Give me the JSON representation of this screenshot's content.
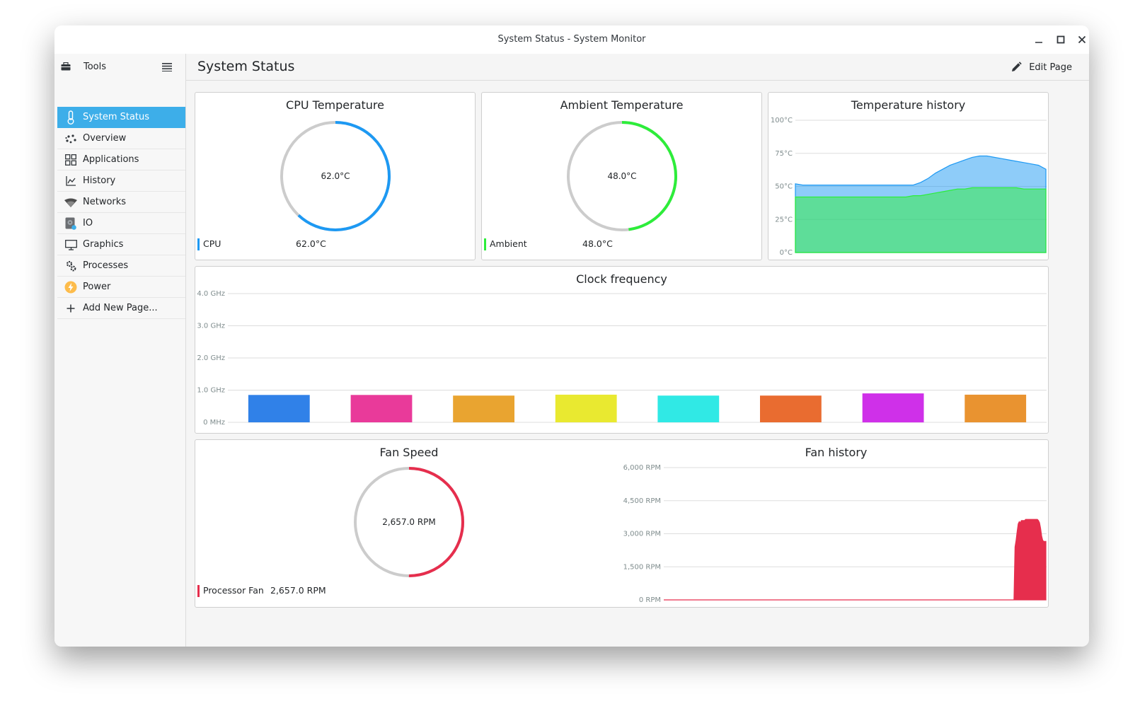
{
  "window": {
    "title": "System Status - System Monitor"
  },
  "sidebar": {
    "tools_label": "Tools",
    "items": [
      {
        "label": "System Status",
        "icon": "thermometer-icon",
        "active": true
      },
      {
        "label": "Overview",
        "icon": "overview-icon"
      },
      {
        "label": "Applications",
        "icon": "applications-grid-icon"
      },
      {
        "label": "History",
        "icon": "history-chart-icon"
      },
      {
        "label": "Networks",
        "icon": "wifi-icon"
      },
      {
        "label": "IO",
        "icon": "disk-icon"
      },
      {
        "label": "Graphics",
        "icon": "monitor-icon"
      },
      {
        "label": "Processes",
        "icon": "gears-icon"
      },
      {
        "label": "Power",
        "icon": "lightning-icon"
      },
      {
        "label": "Add New Page...",
        "icon": "plus-icon"
      }
    ]
  },
  "header": {
    "title": "System Status",
    "edit_label": "Edit Page"
  },
  "colors": {
    "accent": "#3daee9",
    "cpu": "#1d99f3",
    "ambient": "#2ded3a",
    "fan": "#e62e4d",
    "gauge_track": "#cccccc"
  },
  "cpu_temp": {
    "title": "CPU Temperature",
    "value_text": "62.0°C",
    "fraction": 0.62,
    "legend_label": "CPU",
    "legend_value": "62.0°C"
  },
  "ambient_temp": {
    "title": "Ambient Temperature",
    "value_text": "48.0°C",
    "fraction": 0.48,
    "legend_label": "Ambient",
    "legend_value": "48.0°C"
  },
  "fan_speed": {
    "title": "Fan Speed",
    "value_text": "2,657.0 RPM",
    "fraction": 0.5,
    "legend_label": "Processor Fan",
    "legend_value": "2,657.0 RPM"
  },
  "chart_data": [
    {
      "type": "area",
      "title": "Temperature history",
      "ylim": [
        0,
        100
      ],
      "yticks": [
        "100°C",
        "75°C",
        "50°C",
        "25°C",
        "0°C"
      ],
      "ytick_values": [
        100,
        75,
        50,
        25,
        0
      ],
      "grid": true,
      "series": [
        {
          "color": "#1d99f3",
          "values": [
            52,
            51,
            51,
            51,
            51,
            51,
            51,
            51,
            51,
            51,
            51,
            51,
            51,
            51,
            51,
            51,
            51,
            53,
            56,
            60,
            63,
            66,
            68,
            70,
            72,
            73,
            73,
            72,
            71,
            70,
            69,
            68,
            67,
            66,
            63
          ]
        },
        {
          "color": "#2ded3a",
          "values": [
            42,
            42,
            42,
            42,
            42,
            42,
            42,
            42,
            42,
            42,
            42,
            42,
            42,
            42,
            42,
            42,
            43,
            43,
            44,
            45,
            46,
            47,
            48,
            48,
            49,
            49,
            49,
            49,
            49,
            49,
            49,
            48,
            48,
            48,
            48
          ]
        }
      ]
    },
    {
      "type": "bar",
      "title": "Clock frequency",
      "ylim": [
        0,
        4
      ],
      "yticks": [
        "4.0 GHz",
        "3.0 GHz",
        "2.0 GHz",
        "1.0 GHz",
        "0 MHz"
      ],
      "ytick_values": [
        4,
        3,
        2,
        1,
        0
      ],
      "grid": true,
      "series": [
        {
          "color": "#3081e8",
          "value": 0.85
        },
        {
          "color": "#e93a9a",
          "value": 0.85
        },
        {
          "color": "#e9a430",
          "value": 0.83
        },
        {
          "color": "#e9e930",
          "value": 0.86
        },
        {
          "color": "#30e9e5",
          "value": 0.83
        },
        {
          "color": "#e96c30",
          "value": 0.83
        },
        {
          "color": "#cf30e9",
          "value": 0.9
        },
        {
          "color": "#e99330",
          "value": 0.86
        }
      ]
    },
    {
      "type": "area",
      "title": "Fan history",
      "ylim": [
        0,
        6000
      ],
      "yticks": [
        "6,000 RPM",
        "4,500 RPM",
        "3,000 RPM",
        "1,500 RPM",
        "0 RPM"
      ],
      "ytick_values": [
        6000,
        4500,
        3000,
        1500,
        0
      ],
      "grid": true,
      "series": [
        {
          "color": "#e62e4d",
          "values": [
            0,
            0,
            0,
            0,
            0,
            0,
            0,
            0,
            0,
            0,
            0,
            0,
            0,
            0,
            0,
            0,
            0,
            0,
            0,
            0,
            0,
            0,
            0,
            0,
            0,
            0,
            0,
            0,
            0,
            0,
            0,
            0,
            0,
            0,
            0,
            0,
            0,
            0,
            0,
            0,
            0,
            0,
            0,
            0,
            0,
            0,
            0,
            0,
            0,
            0,
            0,
            0,
            0,
            0,
            0,
            0,
            0,
            0,
            0,
            0,
            0,
            0,
            0,
            0,
            0,
            0,
            0,
            0,
            0,
            0,
            0,
            0,
            0,
            0,
            0,
            0,
            0,
            0,
            0,
            0,
            0,
            0,
            0,
            0,
            0,
            0,
            0,
            0,
            0,
            0,
            0,
            0,
            0,
            0,
            0,
            0,
            0,
            0,
            0,
            0,
            0,
            0,
            0,
            0,
            0,
            0,
            0,
            0,
            0,
            0,
            0,
            0,
            0,
            0,
            0,
            0,
            0,
            0,
            0,
            0,
            0,
            0,
            0,
            0,
            0,
            0,
            0,
            0,
            0,
            0,
            0,
            0,
            0,
            0,
            0,
            0,
            0,
            0,
            0,
            0,
            0,
            0,
            0,
            0,
            0,
            0,
            0,
            0,
            0,
            0,
            0,
            0,
            0,
            0,
            0,
            0,
            0,
            0,
            0,
            0,
            0,
            0,
            0,
            0,
            0,
            0,
            0,
            0,
            0,
            0,
            0,
            0,
            0,
            0,
            0,
            0,
            0,
            0,
            0,
            0,
            0,
            0,
            0,
            0,
            0,
            0,
            0,
            0,
            0,
            0,
            0,
            0,
            0,
            0,
            0,
            0,
            0,
            0,
            0,
            0,
            0,
            0,
            0,
            0,
            0,
            0,
            0,
            0,
            0,
            0,
            0,
            0,
            0,
            0,
            0,
            0,
            0,
            0,
            0,
            0,
            0,
            0,
            0,
            0,
            0,
            0,
            0,
            0,
            0,
            0,
            0,
            0,
            0,
            0,
            0,
            0,
            0,
            0,
            0,
            0,
            0,
            0,
            0,
            0,
            0,
            0,
            0,
            0,
            0,
            0,
            0,
            0,
            0,
            0,
            0,
            0,
            0,
            0,
            0,
            0,
            0,
            0,
            0,
            0,
            0,
            0,
            0,
            0,
            0,
            0,
            0,
            0,
            0,
            0,
            0,
            0,
            0,
            0,
            0,
            0,
            0,
            0,
            0,
            0,
            0,
            0,
            0,
            0,
            0,
            0,
            0,
            0,
            0,
            0,
            0,
            0,
            0,
            0,
            0,
            0,
            0,
            0,
            0,
            0,
            0,
            0,
            0,
            0,
            0,
            0,
            0,
            0,
            0,
            0,
            0,
            0,
            0,
            0,
            0,
            0,
            0,
            0,
            0,
            0,
            0,
            0,
            0,
            0,
            0,
            0,
            2400,
            2700,
            3100,
            3450,
            3550,
            3500,
            3600,
            3600,
            3600,
            3600,
            3650,
            3650,
            3650,
            3650,
            3650,
            3650,
            3650,
            3650,
            3650,
            3650,
            3650,
            3650,
            3600,
            3500,
            3250,
            2900,
            2700,
            2650,
            2650,
            2650
          ]
        }
      ]
    }
  ]
}
